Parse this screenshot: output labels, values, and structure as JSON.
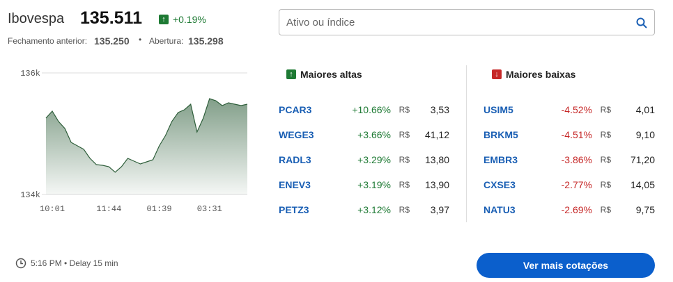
{
  "header": {
    "index_name": "Ibovespa",
    "index_value": "135.511",
    "change": "+0.19%",
    "prev_close_label": "Fechamento anterior:",
    "prev_close": "135.250",
    "separator": "•",
    "open_label": "Abertura:",
    "open": "135.298"
  },
  "search": {
    "placeholder": "Ativo ou índice"
  },
  "chart_data": {
    "type": "area",
    "color": "#2e5e3a",
    "categories": [
      null,
      "10:01",
      null,
      null,
      null,
      null,
      null,
      null,
      null,
      null,
      "11:44",
      null,
      null,
      null,
      null,
      null,
      null,
      null,
      "01:39",
      null,
      null,
      null,
      null,
      null,
      null,
      null,
      "03:31",
      null,
      null,
      null,
      null,
      null,
      null
    ],
    "values": [
      135257,
      135371,
      135200,
      135086,
      134857,
      134800,
      134743,
      134594,
      134491,
      134480,
      134457,
      134366,
      134457,
      134594,
      134549,
      134503,
      134537,
      134571,
      134800,
      134971,
      135200,
      135349,
      135394,
      135486,
      135029,
      135257,
      135577,
      135543,
      135463,
      135509,
      135486,
      135463,
      135486
    ],
    "ylim": [
      134000,
      136000
    ],
    "yticks": [
      {
        "value": 134000,
        "label": "134k"
      },
      {
        "value": 136000,
        "label": "136k"
      }
    ]
  },
  "gainers": {
    "title": "Maiores altas",
    "rows": [
      {
        "ticker": "PCAR3",
        "change": "+10.66%",
        "currency": "R$",
        "price": "3,53"
      },
      {
        "ticker": "WEGE3",
        "change": "+3.66%",
        "currency": "R$",
        "price": "41,12"
      },
      {
        "ticker": "RADL3",
        "change": "+3.29%",
        "currency": "R$",
        "price": "13,80"
      },
      {
        "ticker": "ENEV3",
        "change": "+3.19%",
        "currency": "R$",
        "price": "13,90"
      },
      {
        "ticker": "PETZ3",
        "change": "+3.12%",
        "currency": "R$",
        "price": "3,97"
      }
    ]
  },
  "losers": {
    "title": "Maiores baixas",
    "rows": [
      {
        "ticker": "USIM5",
        "change": "-4.52%",
        "currency": "R$",
        "price": "4,01"
      },
      {
        "ticker": "BRKM5",
        "change": "-4.51%",
        "currency": "R$",
        "price": "9,10"
      },
      {
        "ticker": "EMBR3",
        "change": "-3.86%",
        "currency": "R$",
        "price": "71,20"
      },
      {
        "ticker": "CXSE3",
        "change": "-2.77%",
        "currency": "R$",
        "price": "14,05"
      },
      {
        "ticker": "NATU3",
        "change": "-2.69%",
        "currency": "R$",
        "price": "9,75"
      }
    ]
  },
  "footer": {
    "time": "5:16 PM • Delay 15 min",
    "button": "Ver mais cotações"
  }
}
